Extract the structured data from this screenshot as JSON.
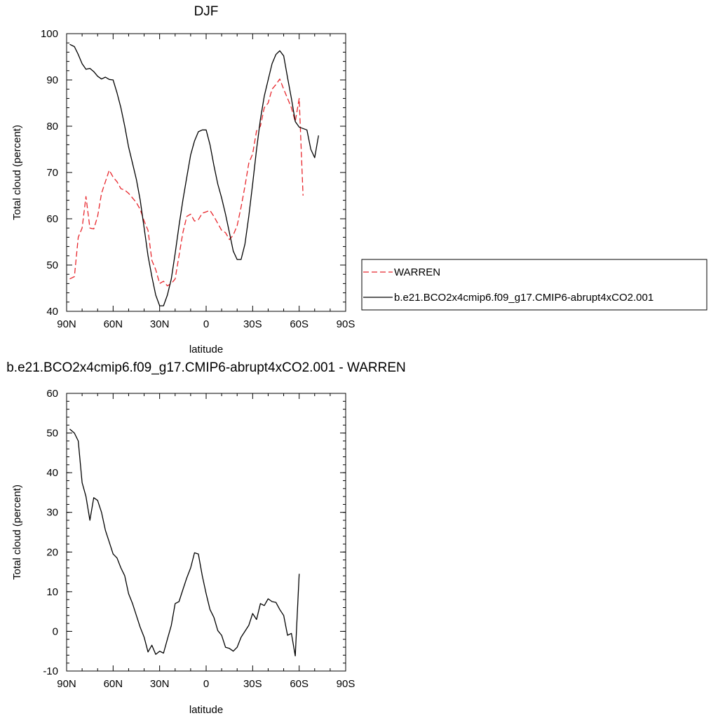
{
  "chart_data": [
    {
      "type": "line",
      "title": "DJF",
      "xlabel": "latitude",
      "ylabel": "Total cloud (percent)",
      "xlim": [
        90,
        -90
      ],
      "ylim": [
        40,
        100
      ],
      "x_ticks": [
        90,
        60,
        30,
        0,
        -30,
        -60,
        -90
      ],
      "x_tick_labels": [
        "90N",
        "60N",
        "30N",
        "0",
        "30S",
        "60S",
        "90S"
      ],
      "y_ticks": [
        40,
        50,
        60,
        70,
        80,
        90,
        100
      ],
      "y_tick_labels": [
        "40",
        "50",
        "60",
        "70",
        "80",
        "90",
        "100"
      ],
      "grid": false,
      "legend_position": "right",
      "series": [
        {
          "name": "WARREN",
          "color": "#e8262c",
          "dash": "dashed",
          "points": [
            [
              88,
              47
            ],
            [
              85,
              47.5
            ],
            [
              82.5,
              56
            ],
            [
              80,
              58
            ],
            [
              77.5,
              64.8
            ],
            [
              75,
              58
            ],
            [
              72.5,
              57.8
            ],
            [
              70,
              60.5
            ],
            [
              67.5,
              65.5
            ],
            [
              65,
              68
            ],
            [
              62.5,
              70.5
            ],
            [
              60,
              69
            ],
            [
              57.5,
              68
            ],
            [
              55,
              66.5
            ],
            [
              52.5,
              66.2
            ],
            [
              50,
              65.5
            ],
            [
              47.5,
              64.5
            ],
            [
              45,
              63.5
            ],
            [
              42.5,
              62
            ],
            [
              40,
              59.5
            ],
            [
              37.5,
              57.5
            ],
            [
              35,
              51
            ],
            [
              32.5,
              49
            ],
            [
              30,
              46
            ],
            [
              27.5,
              46.5
            ],
            [
              25,
              45.5
            ],
            [
              22.5,
              46
            ],
            [
              20,
              47
            ],
            [
              17.5,
              52
            ],
            [
              15,
              57
            ],
            [
              12.5,
              60.5
            ],
            [
              10,
              61
            ],
            [
              7.5,
              59.5
            ],
            [
              5,
              59.8
            ],
            [
              2.5,
              61.2
            ],
            [
              0,
              61.5
            ],
            [
              -2.5,
              61.8
            ],
            [
              -5,
              60.5
            ],
            [
              -7.5,
              59
            ],
            [
              -10,
              57.5
            ],
            [
              -12.5,
              57
            ],
            [
              -15,
              55.5
            ],
            [
              -17.5,
              56.5
            ],
            [
              -20,
              58.5
            ],
            [
              -22.5,
              62.5
            ],
            [
              -25,
              67
            ],
            [
              -27.5,
              72
            ],
            [
              -30,
              74
            ],
            [
              -32.5,
              79
            ],
            [
              -35,
              80
            ],
            [
              -37.5,
              84
            ],
            [
              -40,
              85
            ],
            [
              -42.5,
              88
            ],
            [
              -45,
              89
            ],
            [
              -47.5,
              90.2
            ],
            [
              -50,
              88
            ],
            [
              -52.5,
              86
            ],
            [
              -55,
              84
            ],
            [
              -57.5,
              81
            ],
            [
              -60,
              86
            ],
            [
              -62.5,
              65
            ]
          ]
        },
        {
          "name": "b.e21.BCO2x4cmip6.f09_g17.CMIP6-abrupt4xCO2.001",
          "color": "#000000",
          "dash": "solid",
          "points": [
            [
              88,
              97.7
            ],
            [
              85,
              97.2
            ],
            [
              82.5,
              95.5
            ],
            [
              80,
              93.5
            ],
            [
              77.5,
              92.3
            ],
            [
              75,
              92.5
            ],
            [
              72.5,
              91.8
            ],
            [
              70,
              90.8
            ],
            [
              67.5,
              90.2
            ],
            [
              65,
              90.6
            ],
            [
              62.5,
              90.1
            ],
            [
              60,
              90
            ],
            [
              57.5,
              87.2
            ],
            [
              55,
              84
            ],
            [
              52.5,
              80
            ],
            [
              50,
              75.5
            ],
            [
              47.5,
              72
            ],
            [
              45,
              68.5
            ],
            [
              42.5,
              64
            ],
            [
              40,
              58
            ],
            [
              37.5,
              52
            ],
            [
              35,
              47.5
            ],
            [
              32.5,
              43.5
            ],
            [
              30,
              41.2
            ],
            [
              27.5,
              41.2
            ],
            [
              25,
              43.5
            ],
            [
              22.5,
              47
            ],
            [
              20,
              52.5
            ],
            [
              17.5,
              58.5
            ],
            [
              15,
              64
            ],
            [
              12.5,
              69
            ],
            [
              10,
              73.8
            ],
            [
              7.5,
              76.8
            ],
            [
              5,
              78.8
            ],
            [
              2.5,
              79.2
            ],
            [
              0,
              79.2
            ],
            [
              -2.5,
              76
            ],
            [
              -5,
              71.5
            ],
            [
              -7.5,
              67.5
            ],
            [
              -10,
              64.5
            ],
            [
              -12.5,
              61
            ],
            [
              -15,
              57
            ],
            [
              -17.5,
              53
            ],
            [
              -20,
              51.2
            ],
            [
              -22.5,
              51.2
            ],
            [
              -25,
              54.5
            ],
            [
              -27.5,
              60.5
            ],
            [
              -30,
              67.5
            ],
            [
              -32.5,
              75
            ],
            [
              -35,
              81.5
            ],
            [
              -37.5,
              86.5
            ],
            [
              -40,
              90
            ],
            [
              -42.5,
              93.5
            ],
            [
              -45,
              95.5
            ],
            [
              -47.5,
              96.3
            ],
            [
              -50,
              95.2
            ],
            [
              -52.5,
              90.5
            ],
            [
              -55,
              86
            ],
            [
              -57.5,
              81
            ],
            [
              -60,
              79.8
            ],
            [
              -62.5,
              79.5
            ],
            [
              -65,
              79.2
            ],
            [
              -67.5,
              75
            ],
            [
              -70,
              73.2
            ],
            [
              -72.5,
              78
            ]
          ]
        }
      ]
    },
    {
      "type": "line",
      "title": "b.e21.BCO2x4cmip6.f09_g17.CMIP6-abrupt4xCO2.001 - WARREN",
      "xlabel": "latitude",
      "ylabel": "Total cloud (percent)",
      "xlim": [
        90,
        -90
      ],
      "ylim": [
        -10,
        60
      ],
      "x_ticks": [
        90,
        60,
        30,
        0,
        -30,
        -60,
        -90
      ],
      "x_tick_labels": [
        "90N",
        "60N",
        "30N",
        "0",
        "30S",
        "60S",
        "90S"
      ],
      "y_ticks": [
        -10,
        0,
        10,
        20,
        30,
        40,
        50,
        60
      ],
      "y_tick_labels": [
        "-10",
        "0",
        "10",
        "20",
        "30",
        "40",
        "50",
        "60"
      ],
      "grid": false,
      "series": [
        {
          "color": "#000000",
          "dash": "solid",
          "points": [
            [
              88,
              51
            ],
            [
              85,
              50
            ],
            [
              82.5,
              48
            ],
            [
              80,
              37.5
            ],
            [
              77.5,
              34
            ],
            [
              75,
              28
            ],
            [
              72.5,
              33.7
            ],
            [
              70,
              33
            ],
            [
              67.5,
              30
            ],
            [
              65,
              25.5
            ],
            [
              62.5,
              22.5
            ],
            [
              60,
              19.5
            ],
            [
              57.5,
              18.5
            ],
            [
              55,
              16
            ],
            [
              52.5,
              14
            ],
            [
              50,
              9.5
            ],
            [
              47.5,
              7
            ],
            [
              45,
              4
            ],
            [
              42.5,
              1
            ],
            [
              40,
              -1.5
            ],
            [
              37.5,
              -5.2
            ],
            [
              35,
              -3.5
            ],
            [
              32.5,
              -5.8
            ],
            [
              30,
              -5
            ],
            [
              27.5,
              -5.5
            ],
            [
              25,
              -2
            ],
            [
              22.5,
              1.5
            ],
            [
              20,
              7
            ],
            [
              17.5,
              7.5
            ],
            [
              15,
              10.5
            ],
            [
              12.5,
              13.5
            ],
            [
              10,
              16
            ],
            [
              7.5,
              19.8
            ],
            [
              5,
              19.5
            ],
            [
              2.5,
              14
            ],
            [
              0,
              9.5
            ],
            [
              -2.5,
              5.5
            ],
            [
              -5,
              3.5
            ],
            [
              -7.5,
              0.2
            ],
            [
              -10,
              -1
            ],
            [
              -12.5,
              -4
            ],
            [
              -15,
              -4.3
            ],
            [
              -17.5,
              -5
            ],
            [
              -20,
              -4
            ],
            [
              -22.5,
              -1.5
            ],
            [
              -25,
              0
            ],
            [
              -27.5,
              1.5
            ],
            [
              -30,
              4.5
            ],
            [
              -32.5,
              3
            ],
            [
              -35,
              7
            ],
            [
              -37.5,
              6.5
            ],
            [
              -40,
              8.2
            ],
            [
              -42.5,
              7.5
            ],
            [
              -45,
              7.3
            ],
            [
              -47.5,
              5.5
            ],
            [
              -50,
              4
            ],
            [
              -52.5,
              -1
            ],
            [
              -55,
              -0.5
            ],
            [
              -57.5,
              -6.2
            ],
            [
              -60,
              14.5
            ]
          ]
        }
      ]
    }
  ]
}
